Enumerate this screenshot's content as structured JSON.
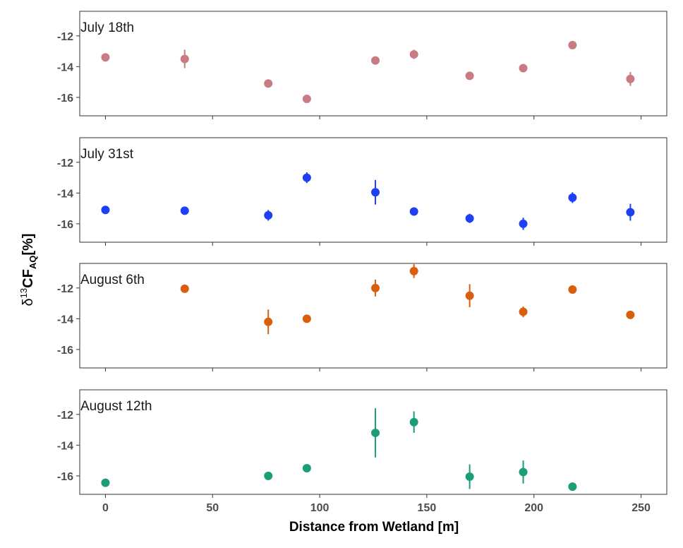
{
  "chart_data": {
    "type": "scatter",
    "xlabel": "Distance from Wetland [m]",
    "ylabel": {
      "delta": "δ",
      "superscript": "13",
      "main": "CF",
      "subscript": "AQ",
      "unit": "[%]"
    },
    "xlim": [
      -12,
      262
    ],
    "ylim": [
      -17.2,
      -10.4
    ],
    "x_ticks": [
      0,
      50,
      100,
      150,
      200,
      250
    ],
    "y_ticks": [
      -12,
      -14,
      -16
    ],
    "grid": false,
    "panels": [
      {
        "name": "July 18th",
        "color": "#C97B84",
        "points": [
          {
            "x": 0,
            "y": -13.4,
            "err": 0.15
          },
          {
            "x": 37,
            "y": -13.5,
            "err": 0.6
          },
          {
            "x": 76,
            "y": -15.1,
            "err": 0.2
          },
          {
            "x": 94,
            "y": -16.1,
            "err": 0.15
          },
          {
            "x": 126,
            "y": -13.6,
            "err": 0.15
          },
          {
            "x": 144,
            "y": -13.2,
            "err": 0.3
          },
          {
            "x": 170,
            "y": -14.6,
            "err": 0.2
          },
          {
            "x": 195,
            "y": -14.1,
            "err": 0.2
          },
          {
            "x": 218,
            "y": -12.6,
            "err": 0.25
          },
          {
            "x": 245,
            "y": -14.8,
            "err": 0.45
          }
        ]
      },
      {
        "name": "July 31st",
        "color": "#1E40F5",
        "points": [
          {
            "x": 0,
            "y": -15.1,
            "err": 0.15
          },
          {
            "x": 37,
            "y": -15.15,
            "err": 0.15
          },
          {
            "x": 76,
            "y": -15.45,
            "err": 0.35
          },
          {
            "x": 94,
            "y": -13.0,
            "err": 0.35
          },
          {
            "x": 126,
            "y": -13.95,
            "err": 0.8
          },
          {
            "x": 144,
            "y": -15.2,
            "err": 0.2
          },
          {
            "x": 170,
            "y": -15.65,
            "err": 0.3
          },
          {
            "x": 195,
            "y": -16.0,
            "err": 0.4
          },
          {
            "x": 218,
            "y": -14.3,
            "err": 0.35
          },
          {
            "x": 245,
            "y": -15.25,
            "err": 0.55
          }
        ]
      },
      {
        "name": "August 6th",
        "color": "#D95F0E",
        "points": [
          {
            "x": 37,
            "y": -12.05,
            "err": 0.15
          },
          {
            "x": 76,
            "y": -14.2,
            "err": 0.8
          },
          {
            "x": 94,
            "y": -14.0,
            "err": 0.2
          },
          {
            "x": 126,
            "y": -12.0,
            "err": 0.55
          },
          {
            "x": 144,
            "y": -10.9,
            "err": 0.45
          },
          {
            "x": 170,
            "y": -12.5,
            "err": 0.75
          },
          {
            "x": 195,
            "y": -13.55,
            "err": 0.35
          },
          {
            "x": 218,
            "y": -12.1,
            "err": 0.15
          },
          {
            "x": 245,
            "y": -13.75,
            "err": 0.15
          }
        ]
      },
      {
        "name": "August 12th",
        "color": "#1B9E77",
        "points": [
          {
            "x": 0,
            "y": -16.45,
            "err": 0.15
          },
          {
            "x": 76,
            "y": -16.0,
            "err": 0.15
          },
          {
            "x": 94,
            "y": -15.5,
            "err": 0.25
          },
          {
            "x": 126,
            "y": -13.2,
            "err": 1.6
          },
          {
            "x": 144,
            "y": -12.5,
            "err": 0.7
          },
          {
            "x": 170,
            "y": -16.05,
            "err": 0.8
          },
          {
            "x": 195,
            "y": -15.75,
            "err": 0.75
          },
          {
            "x": 218,
            "y": -16.7,
            "err": 0.1
          }
        ]
      }
    ]
  }
}
